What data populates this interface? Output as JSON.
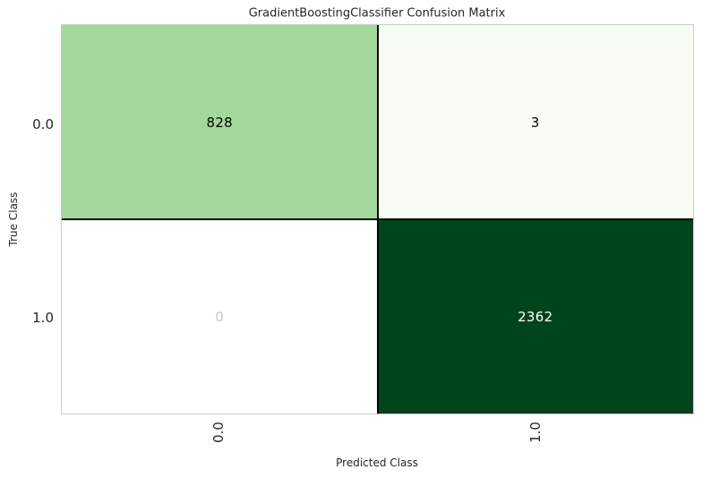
{
  "chart_data": {
    "type": "heatmap",
    "title": "GradientBoostingClassifier Confusion Matrix",
    "xlabel": "Predicted Class",
    "ylabel": "True Class",
    "x_categories": [
      "0.0",
      "1.0"
    ],
    "y_categories": [
      "0.0",
      "1.0"
    ],
    "matrix": [
      [
        828,
        3
      ],
      [
        0,
        2362
      ]
    ],
    "colormap": "Greens",
    "cell_colors": [
      [
        "#a1d99b",
        "#f7fcf5"
      ],
      [
        "#ffffff",
        "#00441b"
      ]
    ],
    "text_colors": [
      [
        "#000000",
        "#000000"
      ],
      [
        "#c6c6c6",
        "#ffffff"
      ]
    ],
    "grid": "off",
    "legend": "none"
  }
}
